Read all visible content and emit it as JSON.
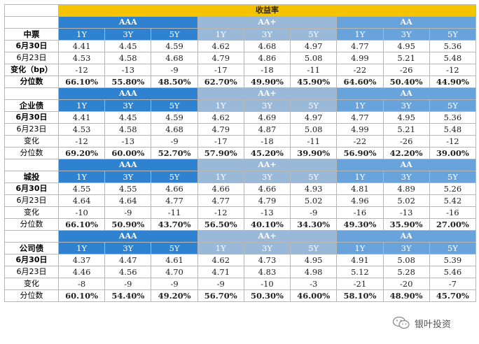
{
  "title": "收益率",
  "groups": [
    {
      "name": "AAA",
      "cls": "aaa"
    },
    {
      "name": "AA+",
      "cls": "aaplus"
    },
    {
      "name": "AA",
      "cls": "aa"
    }
  ],
  "tenors": [
    "1Y",
    "3Y",
    "5Y"
  ],
  "sections": [
    {
      "name": "中票",
      "rows": [
        {
          "label": "6月30日",
          "bold": true,
          "kind": "val",
          "values": [
            "4.41",
            "4.45",
            "4.59",
            "4.62",
            "4.68",
            "4.97",
            "4.77",
            "4.95",
            "5.36"
          ]
        },
        {
          "label": "6月23日",
          "bold": false,
          "kind": "val",
          "values": [
            "4.53",
            "4.58",
            "4.68",
            "4.79",
            "4.86",
            "5.08",
            "4.99",
            "5.21",
            "5.48"
          ]
        },
        {
          "label": "变化（bp）",
          "bold": true,
          "kind": "val",
          "values": [
            "-12",
            "-13",
            "-9",
            "-17",
            "-18",
            "-11",
            "-22",
            "-26",
            "-12"
          ]
        },
        {
          "label": "分位数",
          "bold": true,
          "kind": "pct",
          "values": [
            "66.10%",
            "55.80%",
            "48.50%",
            "62.70%",
            "49.90%",
            "45.90%",
            "64.60%",
            "50.40%",
            "44.90%"
          ]
        }
      ]
    },
    {
      "name": "企业债",
      "rows": [
        {
          "label": "6月30日",
          "bold": true,
          "kind": "val",
          "values": [
            "4.41",
            "4.45",
            "4.59",
            "4.62",
            "4.69",
            "4.97",
            "4.77",
            "4.95",
            "5.36"
          ]
        },
        {
          "label": "6月23日",
          "bold": false,
          "kind": "val",
          "values": [
            "4.53",
            "4.58",
            "4.68",
            "4.79",
            "4.87",
            "5.08",
            "4.99",
            "5.21",
            "5.48"
          ]
        },
        {
          "label": "变化",
          "bold": false,
          "kind": "val",
          "values": [
            "-12",
            "-13",
            "-9",
            "-17",
            "-18",
            "-11",
            "-22",
            "-26",
            "-12"
          ]
        },
        {
          "label": "分位数",
          "bold": false,
          "kind": "pct",
          "values": [
            "69.20%",
            "60.00%",
            "52.70%",
            "57.90%",
            "45.20%",
            "39.90%",
            "56.90%",
            "42.20%",
            "39.00%"
          ]
        }
      ]
    },
    {
      "name": "城投",
      "rows": [
        {
          "label": "6月30日",
          "bold": true,
          "kind": "val",
          "values": [
            "4.55",
            "4.55",
            "4.66",
            "4.66",
            "4.66",
            "4.93",
            "4.81",
            "4.89",
            "5.26"
          ]
        },
        {
          "label": "6月23日",
          "bold": false,
          "kind": "val",
          "values": [
            "4.64",
            "4.64",
            "4.77",
            "4.77",
            "4.79",
            "5.02",
            "4.96",
            "5.02",
            "5.42"
          ]
        },
        {
          "label": "变化",
          "bold": false,
          "kind": "val",
          "values": [
            "-10",
            "-9",
            "-11",
            "-12",
            "-13",
            "-9",
            "-16",
            "-13",
            "-16"
          ]
        },
        {
          "label": "分位数",
          "bold": false,
          "kind": "pct",
          "values": [
            "66.10%",
            "50.90%",
            "43.70%",
            "56.50%",
            "40.10%",
            "34.30%",
            "49.30%",
            "35.90%",
            "27.00%"
          ]
        }
      ]
    },
    {
      "name": "公司债",
      "rows": [
        {
          "label": "6月30日",
          "bold": true,
          "kind": "val",
          "values": [
            "4.37",
            "4.47",
            "4.61",
            "4.62",
            "4.73",
            "4.95",
            "4.91",
            "5.08",
            "5.39"
          ]
        },
        {
          "label": "6月23日",
          "bold": false,
          "kind": "val",
          "values": [
            "4.46",
            "4.56",
            "4.70",
            "4.71",
            "4.83",
            "4.98",
            "5.12",
            "5.28",
            "5.46"
          ]
        },
        {
          "label": "变化",
          "bold": false,
          "kind": "val",
          "values": [
            "-8",
            "-9",
            "-9",
            "-9",
            "-10",
            "-3",
            "-21",
            "-20",
            "-7"
          ]
        },
        {
          "label": "分位数",
          "bold": false,
          "kind": "pct",
          "values": [
            "60.10%",
            "54.40%",
            "49.20%",
            "56.70%",
            "50.30%",
            "46.00%",
            "58.10%",
            "48.90%",
            "45.70%"
          ]
        }
      ]
    }
  ],
  "watermark": {
    "text": "银叶投资",
    "icon": "wechat-icon"
  }
}
